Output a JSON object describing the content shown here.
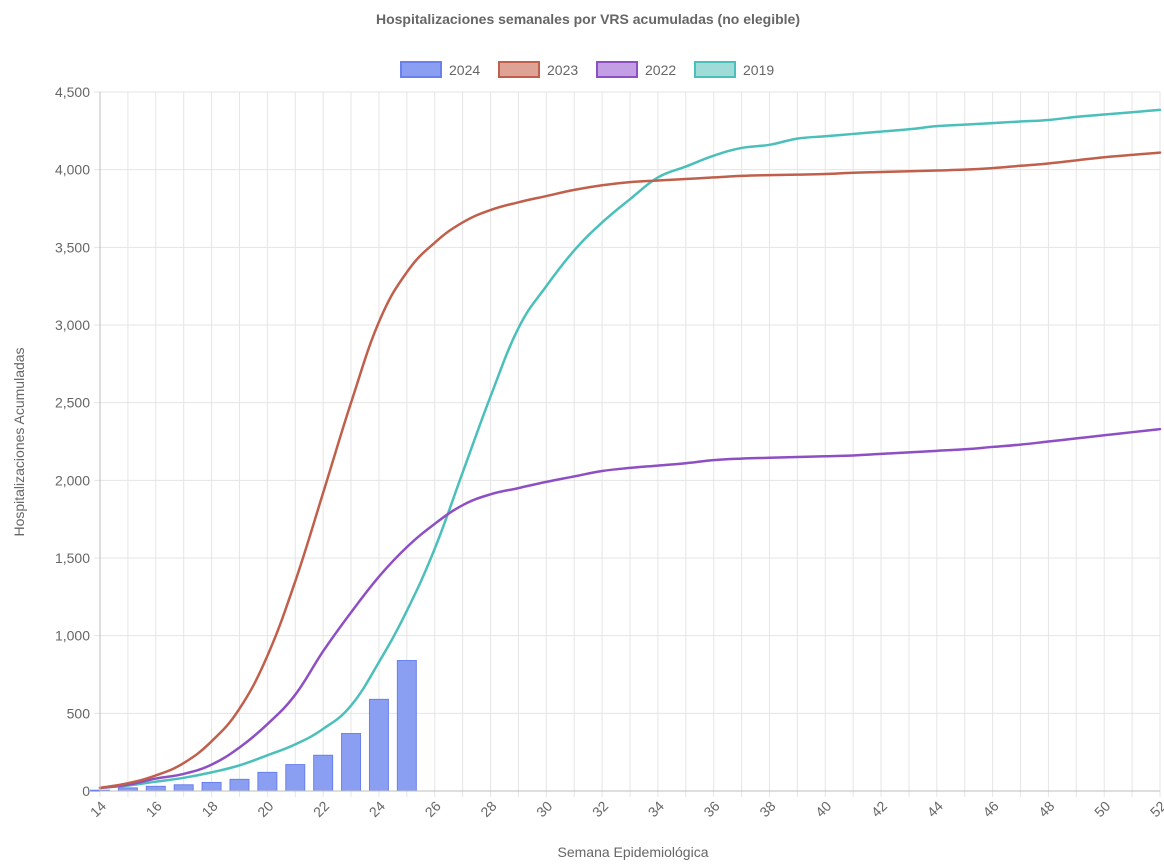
{
  "chart_data": {
    "type": "bar",
    "title": "Hospitalizaciones semanales por VRS acumuladas (no elegible)",
    "xlabel": "Semana Epidemiológica",
    "ylabel": "Hospitalizaciones Acumuladas",
    "ylim": [
      0,
      4500
    ],
    "yticks": [
      0,
      500,
      1000,
      1500,
      2000,
      2500,
      3000,
      3500,
      4000,
      4500
    ],
    "ytick_labels": [
      "0",
      "500",
      "1,000",
      "1,500",
      "2,000",
      "2,500",
      "3,000",
      "3,500",
      "4,000",
      "4,500"
    ],
    "xtick_labels": [
      "14",
      "16",
      "18",
      "20",
      "22",
      "24",
      "26",
      "28",
      "30",
      "32",
      "34",
      "36",
      "38",
      "40",
      "42",
      "44",
      "46",
      "48",
      "50",
      "52"
    ],
    "x": [
      14,
      15,
      16,
      17,
      18,
      19,
      20,
      21,
      22,
      23,
      24,
      25,
      26,
      27,
      28,
      29,
      30,
      31,
      32,
      33,
      34,
      35,
      36,
      37,
      38,
      39,
      40,
      41,
      42,
      43,
      44,
      45,
      46,
      47,
      48,
      49,
      50,
      51,
      52
    ],
    "grid": true,
    "legend_position": "top",
    "series": [
      {
        "name": "2024",
        "type": "bar",
        "color": "#8b9ff2",
        "border": "#6a80ec",
        "x": [
          14,
          15,
          16,
          17,
          18,
          19,
          20,
          21,
          22,
          23,
          24,
          25
        ],
        "values": [
          5,
          20,
          30,
          40,
          55,
          75,
          120,
          170,
          230,
          370,
          590,
          840
        ]
      },
      {
        "name": "2023",
        "type": "line",
        "color": "#c0604c",
        "fill": "#dea394",
        "values": [
          20,
          50,
          100,
          180,
          320,
          530,
          870,
          1350,
          1920,
          2500,
          3020,
          3340,
          3530,
          3660,
          3740,
          3790,
          3830,
          3870,
          3900,
          3920,
          3930,
          3940,
          3950,
          3960,
          3965,
          3968,
          3972,
          3980,
          3985,
          3990,
          3995,
          4000,
          4010,
          4025,
          4040,
          4060,
          4080,
          4095,
          4110
        ]
      },
      {
        "name": "2022",
        "type": "line",
        "color": "#8f4fc4",
        "fill": "#c39ee5",
        "values": [
          20,
          40,
          80,
          110,
          170,
          280,
          430,
          620,
          900,
          1150,
          1380,
          1570,
          1720,
          1840,
          1910,
          1950,
          1990,
          2025,
          2060,
          2080,
          2095,
          2110,
          2130,
          2140,
          2145,
          2150,
          2155,
          2160,
          2170,
          2180,
          2190,
          2200,
          2215,
          2230,
          2250,
          2270,
          2290,
          2310,
          2330
        ]
      },
      {
        "name": "2019",
        "type": "line",
        "color": "#4bbfba",
        "fill": "#9fdcd8",
        "values": [
          20,
          35,
          60,
          85,
          120,
          165,
          230,
          300,
          400,
          550,
          830,
          1160,
          1560,
          2050,
          2540,
          2980,
          3250,
          3480,
          3660,
          3810,
          3950,
          4020,
          4090,
          4140,
          4160,
          4200,
          4215,
          4230,
          4245,
          4260,
          4280,
          4290,
          4300,
          4310,
          4320,
          4340,
          4355,
          4370,
          4385
        ]
      }
    ]
  }
}
